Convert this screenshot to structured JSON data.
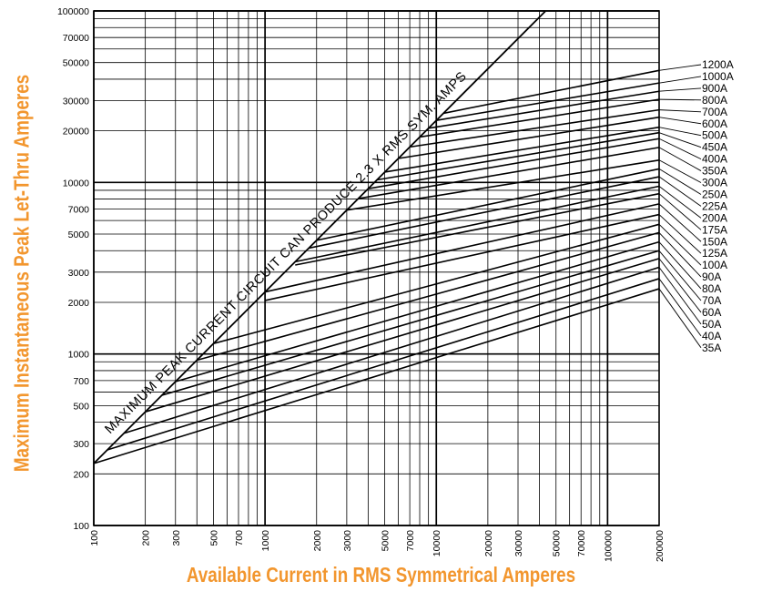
{
  "chart_data": {
    "type": "line",
    "scale": "log-log",
    "xlabel": "Available Current in RMS Symmetrical Amperes",
    "ylabel": "Maximum Instantaneous Peak Let-Thru Amperes",
    "xlim": [
      100,
      200000
    ],
    "ylim": [
      100,
      100000
    ],
    "x_ticks": [
      "100",
      "200",
      "300",
      "500",
      "700",
      "1000",
      "2000",
      "3000",
      "5000",
      "7000",
      "10000",
      "20000",
      "30000",
      "50000",
      "70000",
      "100000",
      "200000"
    ],
    "y_ticks": [
      "100",
      "200",
      "300",
      "500",
      "700",
      "1000",
      "2000",
      "3000",
      "5000",
      "7000",
      "10000",
      "20000",
      "30000",
      "50000",
      "70000",
      "100000"
    ],
    "annotation": "MAXIMUM PEAK CURRENT CIRCUIT CAN PRODUCE 2.3 X RMS SYM. AMPS",
    "max_line": {
      "x": [
        100,
        43500
      ],
      "y": [
        230,
        100000
      ]
    },
    "series": [
      {
        "name": "1200A",
        "x": [
          11000,
          200000
        ],
        "y": [
          25300,
          45000
        ]
      },
      {
        "name": "1000A",
        "x": [
          10000,
          200000
        ],
        "y": [
          23000,
          38000
        ]
      },
      {
        "name": "900A",
        "x": [
          9000,
          200000
        ],
        "y": [
          20700,
          34000
        ]
      },
      {
        "name": "800A",
        "x": [
          8000,
          200000
        ],
        "y": [
          18400,
          30500
        ]
      },
      {
        "name": "700A",
        "x": [
          7000,
          200000
        ],
        "y": [
          16100,
          26500
        ]
      },
      {
        "name": "600A",
        "x": [
          6000,
          200000
        ],
        "y": [
          13800,
          24000
        ]
      },
      {
        "name": "500A",
        "x": [
          5000,
          200000
        ],
        "y": [
          11500,
          21000
        ]
      },
      {
        "name": "450A",
        "x": [
          4500,
          200000
        ],
        "y": [
          10350,
          19500
        ]
      },
      {
        "name": "400A",
        "x": [
          4000,
          200000
        ],
        "y": [
          9200,
          18000
        ]
      },
      {
        "name": "350A",
        "x": [
          3500,
          200000
        ],
        "y": [
          8050,
          16000
        ]
      },
      {
        "name": "300A",
        "x": [
          3000,
          200000
        ],
        "y": [
          6900,
          13500
        ]
      },
      {
        "name": "250A",
        "x": [
          2000,
          200000
        ],
        "y": [
          4600,
          12000
        ]
      },
      {
        "name": "225A",
        "x": [
          1800,
          200000
        ],
        "y": [
          4140,
          10800
        ]
      },
      {
        "name": "200A",
        "x": [
          1500,
          200000
        ],
        "y": [
          3450,
          9500
        ]
      },
      {
        "name": "175A",
        "x": [
          1500,
          200000
        ],
        "y": [
          3300,
          8600
        ]
      },
      {
        "name": "150A",
        "x": [
          1000,
          200000
        ],
        "y": [
          2300,
          7500
        ]
      },
      {
        "name": "125A",
        "x": [
          1000,
          200000
        ],
        "y": [
          2050,
          6500
        ]
      },
      {
        "name": "100A",
        "x": [
          500,
          200000
        ],
        "y": [
          1150,
          5700
        ]
      },
      {
        "name": "90A",
        "x": [
          400,
          200000
        ],
        "y": [
          920,
          5100
        ]
      },
      {
        "name": "80A",
        "x": [
          300,
          200000
        ],
        "y": [
          690,
          4500
        ]
      },
      {
        "name": "70A",
        "x": [
          250,
          200000
        ],
        "y": [
          575,
          4000
        ]
      },
      {
        "name": "60A",
        "x": [
          200,
          200000
        ],
        "y": [
          460,
          3600
        ]
      },
      {
        "name": "50A",
        "x": [
          150,
          200000
        ],
        "y": [
          345,
          3200
        ]
      },
      {
        "name": "40A",
        "x": [
          120,
          200000
        ],
        "y": [
          276,
          2750
        ]
      },
      {
        "name": "35A",
        "x": [
          100,
          200000
        ],
        "y": [
          230,
          2400
        ]
      }
    ]
  }
}
